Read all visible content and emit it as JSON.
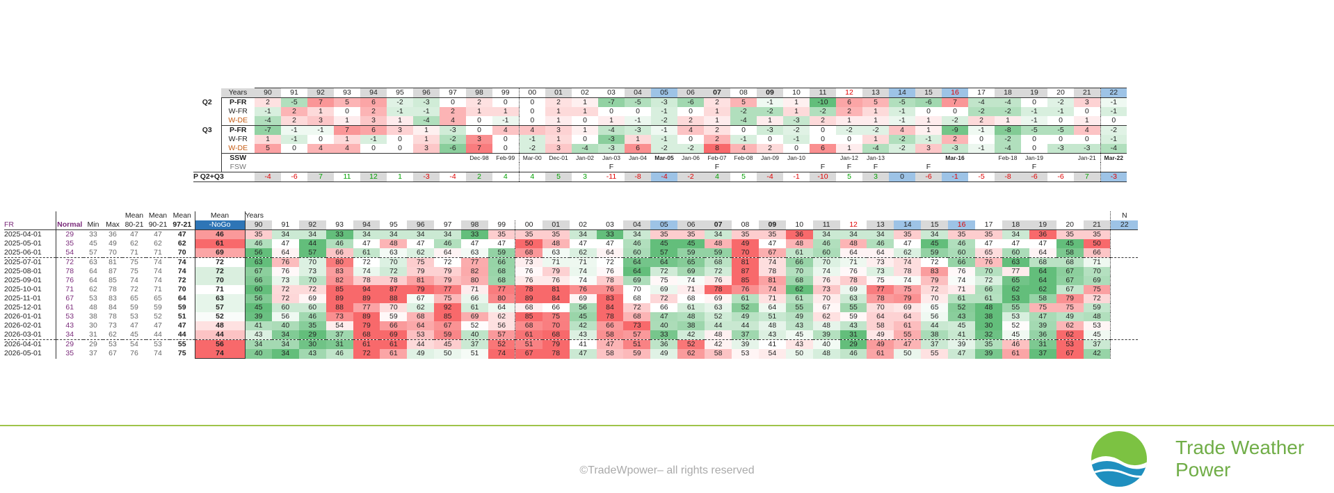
{
  "years": [
    "90",
    "91",
    "92",
    "93",
    "94",
    "95",
    "96",
    "97",
    "98",
    "99",
    "00",
    "01",
    "02",
    "03",
    "04",
    "05",
    "06",
    "07",
    "08",
    "09",
    "10",
    "11",
    "12",
    "13",
    "14",
    "15",
    "16",
    "17",
    "18",
    "19",
    "20",
    "21",
    "22"
  ],
  "year_style": [
    "g",
    "",
    "g",
    "",
    "g",
    "",
    "g",
    "",
    "g",
    "",
    "",
    "g",
    "",
    "",
    "g",
    "b",
    "g",
    "gb",
    "",
    "gb",
    "",
    "g",
    "r",
    "g",
    "b",
    "g",
    "br",
    "",
    "g",
    "g",
    "",
    "g",
    "b"
  ],
  "top": {
    "years_label": "Years",
    "q2_label": "Q2",
    "q3_label": "Q3",
    "rows": [
      {
        "group": "Q2",
        "name": "P-FR",
        "cls": "bold",
        "vals": [
          2,
          -5,
          7,
          5,
          6,
          -2,
          -3,
          0,
          2,
          0,
          0,
          2,
          1,
          -7,
          -5,
          -3,
          -6,
          2,
          5,
          -1,
          1,
          -10,
          6,
          5,
          -5,
          -6,
          7,
          -4,
          -4,
          0,
          -2,
          3,
          -1
        ]
      },
      {
        "group": "",
        "name": "W-FR",
        "cls": "",
        "vals": [
          -1,
          2,
          1,
          0,
          2,
          -1,
          -1,
          2,
          1,
          1,
          0,
          1,
          1,
          0,
          0,
          -1,
          0,
          1,
          -2,
          -2,
          1,
          -2,
          2,
          1,
          -1,
          0,
          0,
          -2,
          -2,
          -1,
          -1,
          0,
          -1
        ]
      },
      {
        "group": "",
        "name": "W-DE",
        "cls": "wde",
        "vals": [
          -4,
          2,
          3,
          1,
          3,
          1,
          -4,
          4,
          0,
          -1,
          0,
          1,
          0,
          1,
          -1,
          -2,
          2,
          1,
          -4,
          1,
          -3,
          2,
          1,
          1,
          -1,
          1,
          -2,
          2,
          1,
          -1,
          0,
          1,
          0
        ]
      },
      {
        "group": "Q3",
        "name": "P-FR",
        "cls": "bold",
        "vals": [
          -7,
          -1,
          -1,
          7,
          6,
          3,
          1,
          -3,
          0,
          4,
          4,
          3,
          1,
          -4,
          -3,
          -1,
          4,
          2,
          0,
          -3,
          -2,
          0,
          -2,
          -2,
          4,
          1,
          -9,
          -1,
          -8,
          -5,
          -5,
          4,
          -2
        ]
      },
      {
        "group": "",
        "name": "W-FR",
        "cls": "",
        "vals": [
          1,
          -1,
          0,
          1,
          -1,
          0,
          1,
          -2,
          3,
          0,
          -1,
          1,
          0,
          -3,
          1,
          -1,
          0,
          2,
          -1,
          0,
          -1,
          0,
          0,
          1,
          -2,
          -1,
          2,
          0,
          -2,
          0,
          0,
          0,
          -1
        ]
      },
      {
        "group": "",
        "name": "W-DE",
        "cls": "wde",
        "vals": [
          5,
          0,
          4,
          4,
          0,
          0,
          3,
          -6,
          7,
          0,
          -2,
          3,
          -4,
          -3,
          6,
          -2,
          -2,
          8,
          4,
          2,
          0,
          6,
          1,
          -4,
          -2,
          3,
          -3,
          -1,
          -4,
          0,
          -3,
          -3,
          -4
        ]
      }
    ],
    "ssw_label": "SSW",
    "fsw_label": "FSW",
    "ssw": [
      "",
      "",
      "",
      "",
      "",
      "",
      "",
      "",
      "Dec-98",
      "Feb-99",
      "Mar-00",
      "Dec-01",
      "Jan-02",
      "Jan-03",
      "Jan-04",
      "Mar-05",
      "Jan-06",
      "Feb-07",
      "Feb-08",
      "Jan-09",
      "Jan-10",
      "",
      "Jan-12",
      "Jan-13",
      "",
      "",
      "Mar-16",
      "",
      "Feb-18",
      "Jan-19",
      "",
      "Jan-21",
      "Mar-22"
    ],
    "ssw_bold": [
      15,
      26,
      32
    ],
    "fsw": [
      "",
      "",
      "",
      "",
      "",
      "",
      "",
      "",
      "",
      "",
      "",
      "",
      "",
      "F",
      "",
      "",
      "",
      "F",
      "",
      "",
      "",
      "F",
      "F",
      "F",
      "",
      "F",
      "",
      "",
      "",
      "F",
      "",
      "",
      ""
    ],
    "pq_label": "P Q2+Q3",
    "pq": [
      -4,
      -6,
      7,
      11,
      12,
      1,
      -3,
      -4,
      2,
      4,
      4,
      5,
      3,
      -11,
      -8,
      -4,
      -2,
      4,
      5,
      -4,
      -1,
      -10,
      5,
      3,
      0,
      -6,
      -1,
      -5,
      -8,
      -6,
      -6,
      7,
      -3
    ]
  },
  "bottom": {
    "years_label": "Years",
    "n_label": "N",
    "headers": {
      "fr": "FR",
      "normal": "Normal",
      "min": "Min",
      "max": "Max",
      "mean8021_top": "Mean",
      "mean8021_bot": "80-21",
      "mean9021_top": "Mean",
      "mean9021_bot": "90-21",
      "mean9721_top": "Mean",
      "mean9721_bot": "97-21",
      "mean_top": "Mean",
      "mean_bot": "-NoGo"
    },
    "rows": [
      {
        "date": "2025-04-01",
        "normal": 29,
        "min": 33,
        "max": 36,
        "m80": 47,
        "m90": 47,
        "m97": 47,
        "mean": 46,
        "vals": [
          35,
          34,
          34,
          33,
          34,
          34,
          34,
          34,
          33,
          35,
          35,
          35,
          34,
          33,
          34,
          35,
          35,
          34,
          35,
          35,
          36,
          34,
          34,
          34,
          35,
          34,
          35,
          35,
          34,
          36,
          35,
          35,
          null
        ]
      },
      {
        "date": "2025-05-01",
        "normal": 35,
        "min": 45,
        "max": 49,
        "m80": 62,
        "m90": 62,
        "m97": 62,
        "mean": 61,
        "vals": [
          46,
          47,
          44,
          46,
          47,
          48,
          47,
          46,
          47,
          47,
          50,
          48,
          47,
          47,
          46,
          45,
          45,
          48,
          49,
          47,
          48,
          46,
          48,
          46,
          47,
          45,
          46,
          47,
          47,
          47,
          45,
          50,
          null
        ]
      },
      {
        "date": "2025-06-01",
        "normal": 54,
        "min": 57,
        "max": 70,
        "m80": 71,
        "m90": 71,
        "m97": 70,
        "mean": 69,
        "vals": [
          56,
          64,
          57,
          66,
          61,
          63,
          62,
          64,
          63,
          59,
          68,
          63,
          62,
          64,
          60,
          57,
          59,
          59,
          70,
          67,
          61,
          60,
          64,
          64,
          62,
          59,
          60,
          65,
          60,
          64,
          58,
          66,
          null
        ]
      },
      {
        "date": "2025-07-01",
        "normal": 72,
        "min": 63,
        "max": 81,
        "m80": 75,
        "m90": 74,
        "m97": 74,
        "mean": 72,
        "vals": [
          63,
          76,
          70,
          80,
          72,
          70,
          75,
          72,
          77,
          66,
          73,
          71,
          71,
          72,
          64,
          64,
          65,
          68,
          81,
          74,
          66,
          70,
          71,
          73,
          74,
          72,
          66,
          76,
          63,
          68,
          68,
          71,
          null
        ]
      },
      {
        "date": "2025-08-01",
        "normal": 78,
        "min": 64,
        "max": 87,
        "m80": 75,
        "m90": 74,
        "m97": 74,
        "mean": 72,
        "vals": [
          67,
          76,
          73,
          83,
          74,
          72,
          79,
          79,
          82,
          68,
          76,
          79,
          74,
          76,
          64,
          72,
          69,
          72,
          87,
          78,
          70,
          74,
          76,
          73,
          78,
          83,
          76,
          70,
          77,
          64,
          67,
          70,
          null
        ]
      },
      {
        "date": "2025-09-01",
        "normal": 76,
        "min": 64,
        "max": 85,
        "m80": 74,
        "m90": 74,
        "m97": 72,
        "mean": 70,
        "vals": [
          66,
          73,
          70,
          82,
          78,
          78,
          81,
          79,
          80,
          68,
          76,
          76,
          74,
          78,
          69,
          75,
          74,
          76,
          85,
          81,
          68,
          76,
          78,
          75,
          74,
          79,
          74,
          72,
          65,
          64,
          67,
          69,
          null
        ]
      },
      {
        "date": "2025-10-01",
        "normal": 71,
        "min": 62,
        "max": 78,
        "m80": 72,
        "m90": 71,
        "m97": 70,
        "mean": 71,
        "vals": [
          60,
          72,
          72,
          85,
          94,
          87,
          79,
          77,
          71,
          77,
          78,
          81,
          76,
          76,
          70,
          69,
          71,
          78,
          76,
          74,
          62,
          73,
          69,
          77,
          75,
          72,
          71,
          66,
          62,
          62,
          67,
          75,
          null
        ]
      },
      {
        "date": "2025-11-01",
        "normal": 67,
        "min": 53,
        "max": 83,
        "m80": 65,
        "m90": 65,
        "m97": 64,
        "mean": 63,
        "vals": [
          56,
          72,
          69,
          89,
          89,
          88,
          67,
          75,
          66,
          80,
          89,
          84,
          69,
          83,
          68,
          72,
          68,
          69,
          61,
          71,
          61,
          70,
          63,
          78,
          79,
          70,
          61,
          61,
          53,
          58,
          79,
          72,
          null
        ]
      },
      {
        "date": "2025-12-01",
        "normal": 61,
        "min": 48,
        "max": 84,
        "m80": 59,
        "m90": 59,
        "m97": 59,
        "mean": 57,
        "vals": [
          45,
          60,
          60,
          88,
          77,
          70,
          62,
          92,
          61,
          64,
          68,
          66,
          56,
          84,
          72,
          66,
          61,
          63,
          52,
          64,
          55,
          67,
          55,
          70,
          69,
          65,
          52,
          48,
          55,
          75,
          75,
          59,
          null
        ]
      },
      {
        "date": "2026-01-01",
        "normal": 53,
        "min": 38,
        "max": 78,
        "m80": 53,
        "m90": 52,
        "m97": 51,
        "mean": 52,
        "vals": [
          39,
          56,
          46,
          73,
          89,
          59,
          68,
          85,
          69,
          62,
          85,
          75,
          45,
          78,
          68,
          47,
          48,
          52,
          49,
          51,
          49,
          62,
          59,
          64,
          64,
          56,
          43,
          38,
          53,
          47,
          49,
          48,
          null
        ]
      },
      {
        "date": "2026-02-01",
        "normal": 43,
        "min": 30,
        "max": 73,
        "m80": 47,
        "m90": 47,
        "m97": 47,
        "mean": 48,
        "vals": [
          41,
          40,
          35,
          54,
          79,
          66,
          64,
          67,
          52,
          56,
          68,
          70,
          42,
          66,
          73,
          40,
          38,
          44,
          44,
          48,
          43,
          48,
          43,
          58,
          61,
          44,
          45,
          30,
          52,
          39,
          62,
          53,
          null
        ]
      },
      {
        "date": "2026-03-01",
        "normal": 34,
        "min": 31,
        "max": 62,
        "m80": 45,
        "m90": 44,
        "m97": 44,
        "mean": 44,
        "vals": [
          43,
          34,
          29,
          37,
          68,
          69,
          53,
          59,
          40,
          57,
          61,
          68,
          43,
          58,
          57,
          33,
          42,
          48,
          37,
          43,
          45,
          39,
          31,
          49,
          55,
          38,
          41,
          32,
          45,
          36,
          62,
          45,
          null
        ]
      },
      {
        "date": "2026-04-01",
        "normal": 29,
        "min": 29,
        "max": 53,
        "m80": 54,
        "m90": 53,
        "m97": 55,
        "mean": 56,
        "vals": [
          34,
          34,
          30,
          31,
          61,
          61,
          44,
          45,
          37,
          52,
          51,
          79,
          41,
          47,
          51,
          36,
          52,
          42,
          39,
          41,
          43,
          40,
          29,
          49,
          47,
          37,
          39,
          35,
          46,
          31,
          53,
          37,
          null
        ]
      },
      {
        "date": "2026-05-01",
        "normal": 35,
        "min": 37,
        "max": 67,
        "m80": 76,
        "m90": 74,
        "m97": 75,
        "mean": 74,
        "vals": [
          40,
          34,
          43,
          46,
          72,
          61,
          49,
          50,
          51,
          74,
          67,
          78,
          47,
          58,
          59,
          49,
          62,
          58,
          53,
          54,
          50,
          48,
          46,
          61,
          50,
          55,
          47,
          39,
          61,
          37,
          67,
          42,
          null
        ]
      }
    ]
  },
  "footer": {
    "copyright": "©TradeWpower– all rights reserved",
    "brand_line1": "Trade Weather",
    "brand_line2": "Power"
  },
  "colors": {
    "brand": "#70ad47",
    "logo_green": "#7cc242",
    "logo_blue": "#1f8fbf",
    "red": "#f8696b",
    "green": "#63be7b",
    "grey": "#d9d9d9",
    "blue": "#9dc3e6",
    "nogo": "#2e75b6"
  }
}
